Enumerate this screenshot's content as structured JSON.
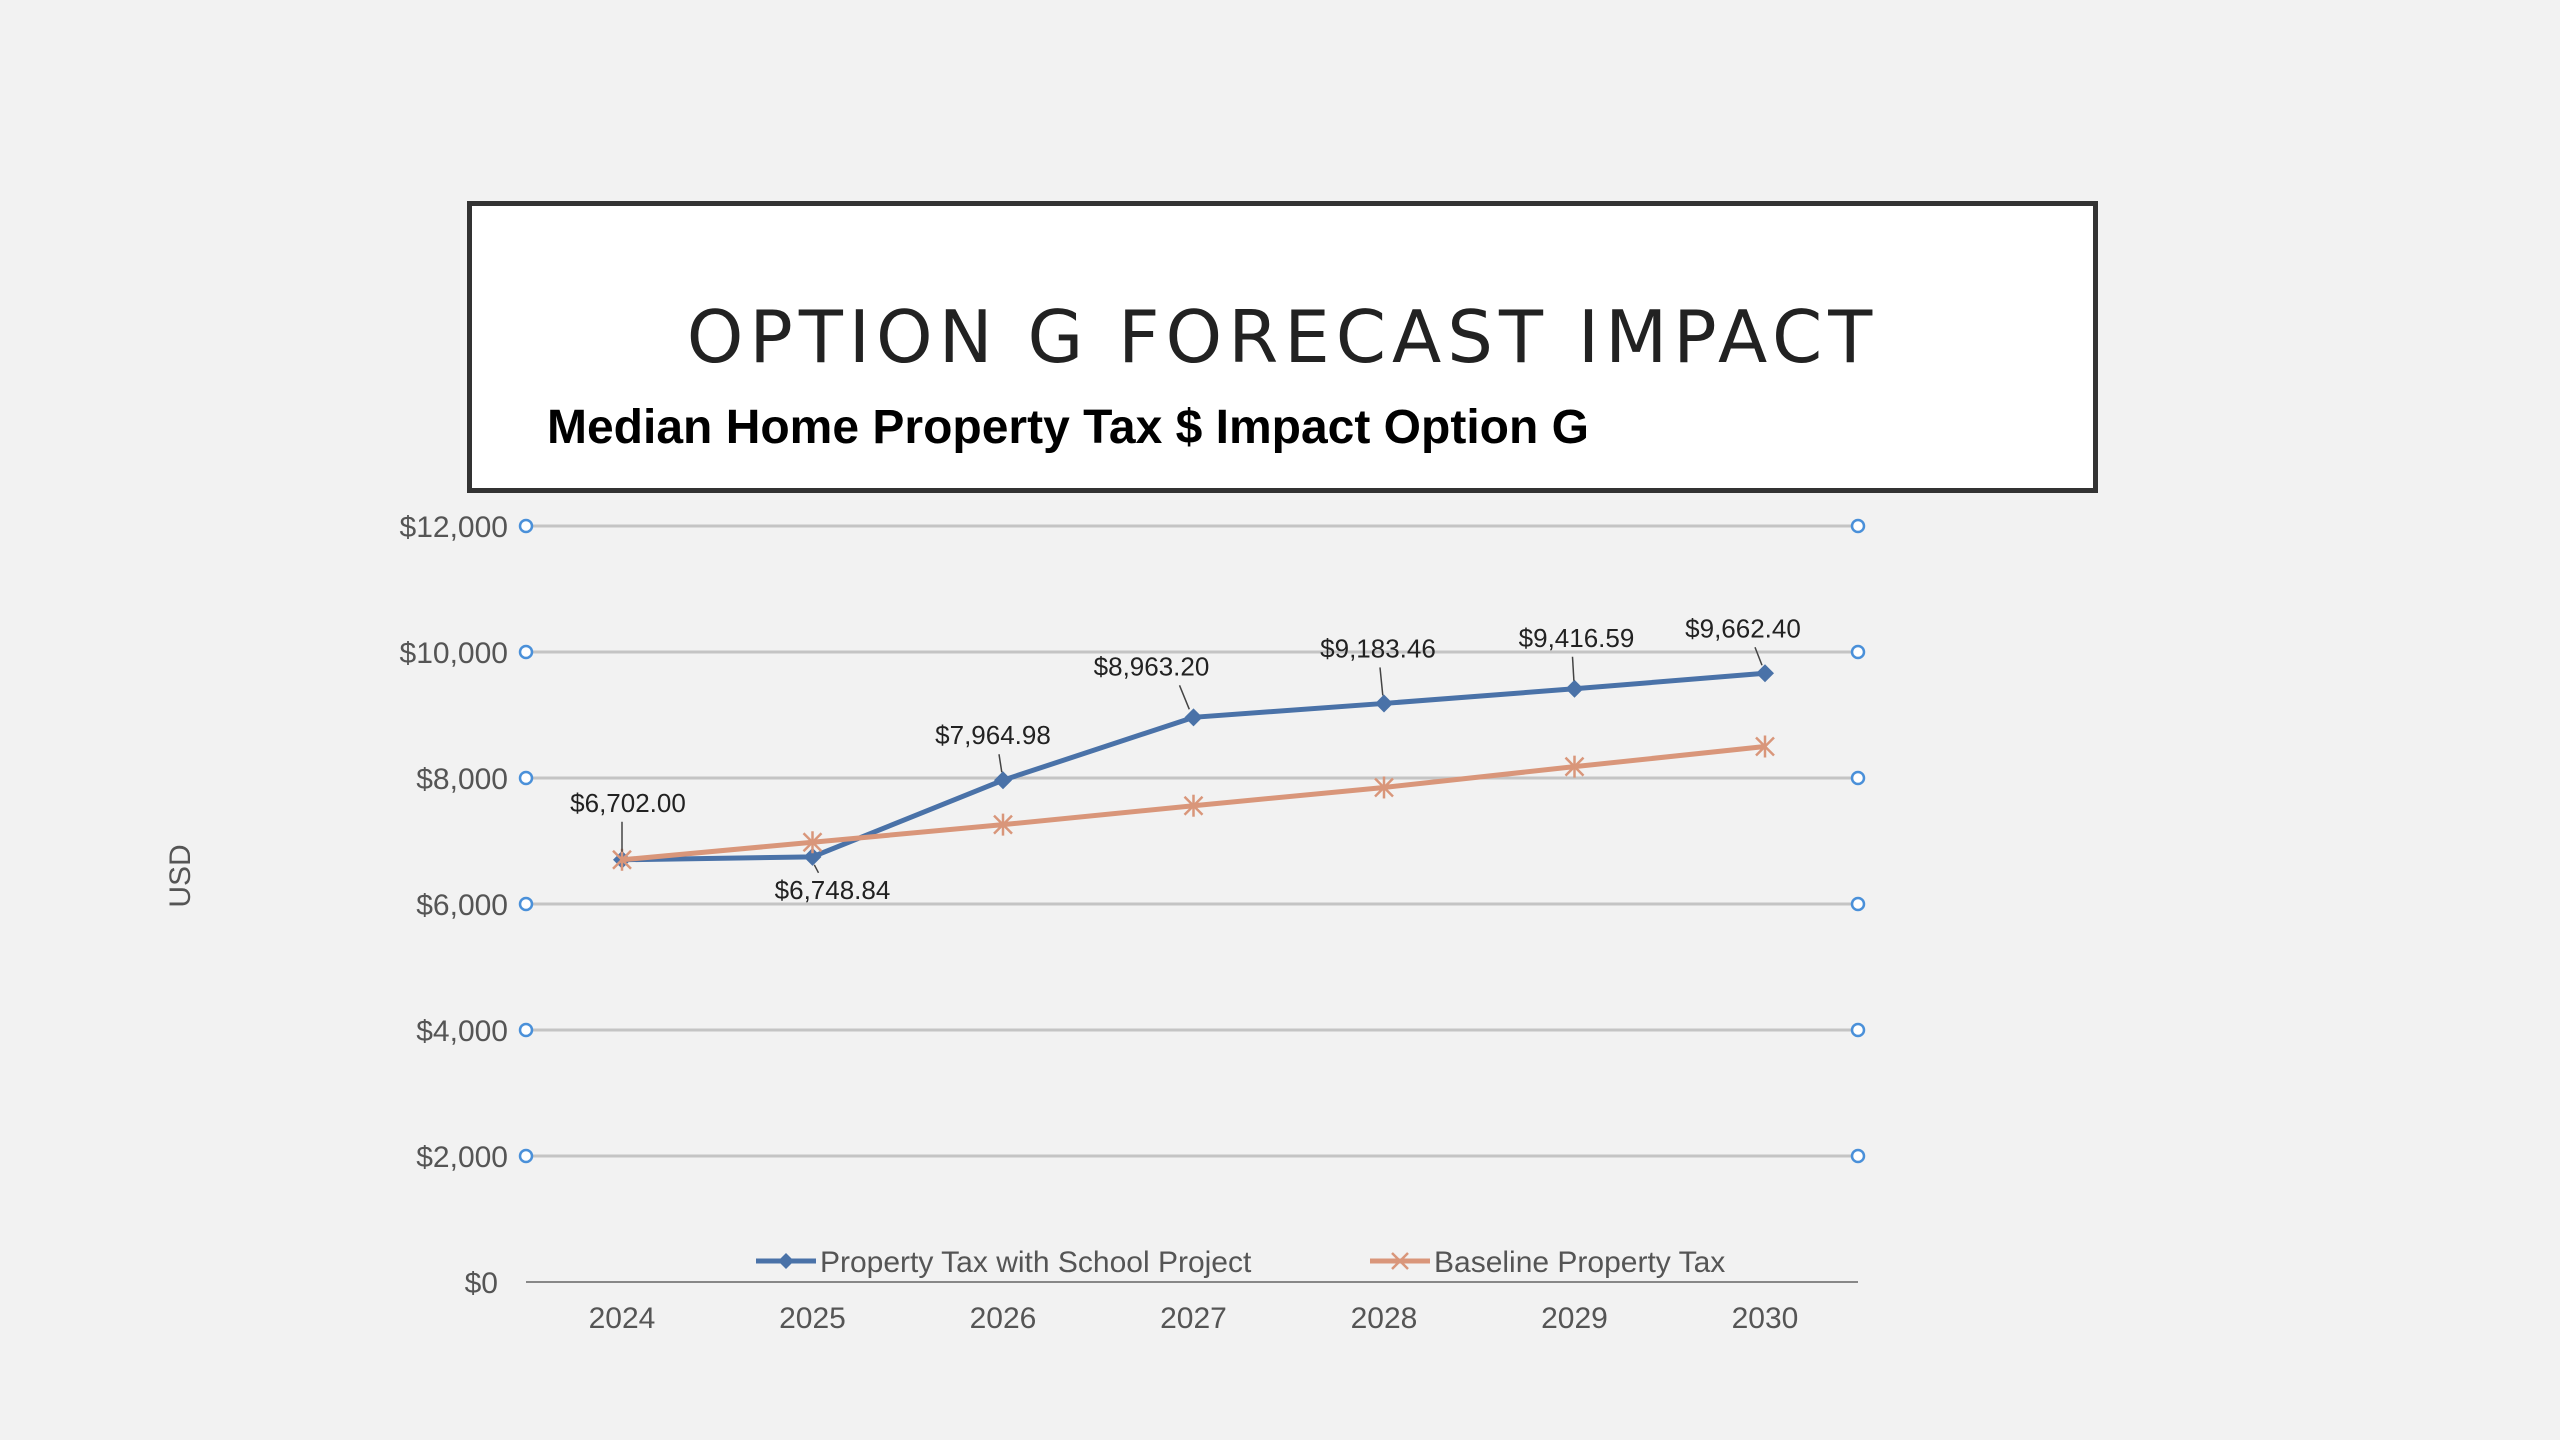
{
  "slide": {
    "title": "OPTION G FORECAST IMPACT"
  },
  "colors": {
    "series1": "#4a72a8",
    "series2": "#d9967a",
    "grid": "#c4c4c4",
    "gridEndpoint": "#4a90d9",
    "axisText": "#555555",
    "labelText": "#222222"
  },
  "chart_data": {
    "type": "line",
    "title": "Median Home Property Tax $ Impact Option G",
    "ylabel": "USD",
    "xlabel": "",
    "categories": [
      "2024",
      "2025",
      "2026",
      "2027",
      "2028",
      "2029",
      "2030"
    ],
    "ylim": [
      0,
      12000
    ],
    "yticks": [
      0,
      2000,
      4000,
      6000,
      8000,
      10000,
      12000
    ],
    "ytick_labels": [
      "$0",
      "$2,000",
      "$4,000",
      "$6,000",
      "$8,000",
      "$10,000",
      "$12,000"
    ],
    "grid": true,
    "legend_position": "bottom",
    "series": [
      {
        "name": "Property Tax with School Project",
        "marker": "diamond",
        "values": [
          6702.0,
          6748.84,
          7964.98,
          8963.2,
          9183.46,
          9416.59,
          9662.4
        ],
        "data_labels": [
          "$6,702.00",
          "$6,748.84",
          "$7,964.98",
          "$8,963.20",
          "$9,183.46",
          "$9,416.59",
          "$9,662.40"
        ]
      },
      {
        "name": "Baseline Property Tax",
        "marker": "star",
        "values": [
          6702,
          6980,
          7260,
          7560,
          7850,
          8180,
          8500
        ]
      }
    ]
  }
}
